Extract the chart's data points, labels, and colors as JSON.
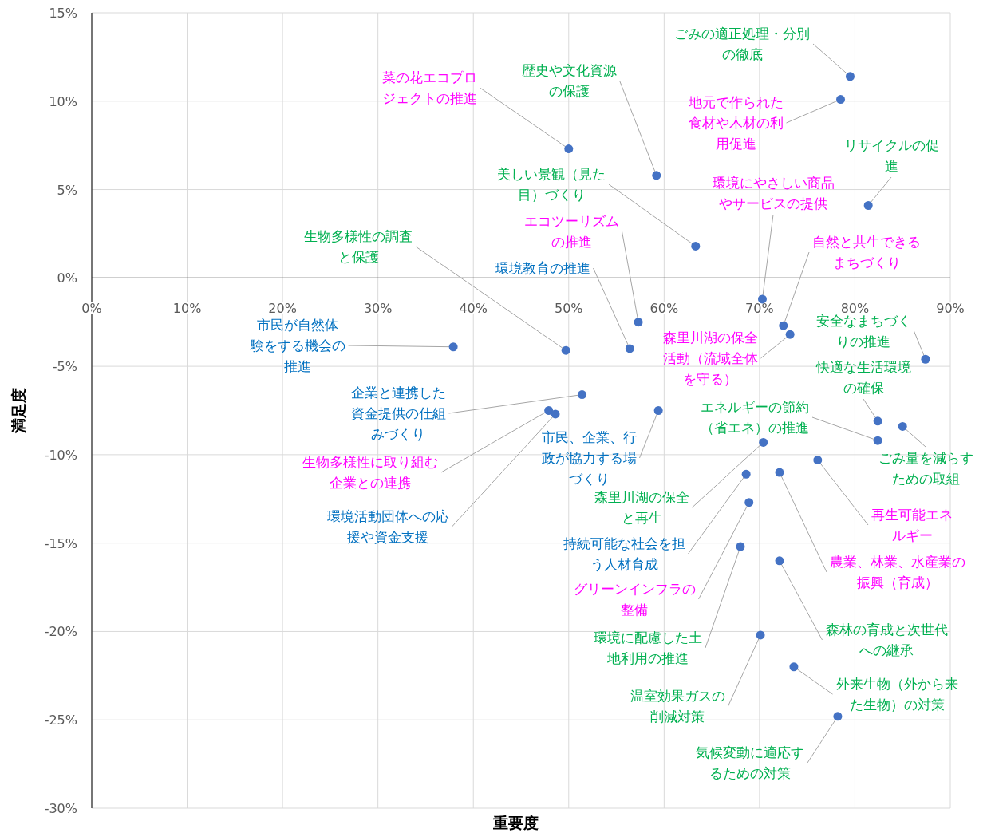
{
  "chart_data": {
    "type": "scatter",
    "xlabel": "重要度",
    "ylabel": "満足度",
    "xlim": [
      0,
      90
    ],
    "ylim": [
      -30,
      15
    ],
    "xticks": [
      {
        "value": 0,
        "label": "0%"
      },
      {
        "value": 10,
        "label": "10%"
      },
      {
        "value": 20,
        "label": "20%"
      },
      {
        "value": 30,
        "label": "30%"
      },
      {
        "value": 40,
        "label": "40%"
      },
      {
        "value": 50,
        "label": "50%"
      },
      {
        "value": 60,
        "label": "60%"
      },
      {
        "value": 70,
        "label": "70%"
      },
      {
        "value": 80,
        "label": "80%"
      },
      {
        "value": 90,
        "label": "90%"
      }
    ],
    "yticks": [
      {
        "value": 15,
        "label": "15%"
      },
      {
        "value": 10,
        "label": "10%"
      },
      {
        "value": 5,
        "label": "5%"
      },
      {
        "value": 0,
        "label": "0%"
      },
      {
        "value": -5,
        "label": "-5%"
      },
      {
        "value": -10,
        "label": "-10%"
      },
      {
        "value": -15,
        "label": "-15%"
      },
      {
        "value": -20,
        "label": "-20%"
      },
      {
        "value": -25,
        "label": "-25%"
      },
      {
        "value": -30,
        "label": "-30%"
      }
    ],
    "grid": true,
    "marker": "circle",
    "series": [
      {
        "color": "#4472c4",
        "x": [
          79.5,
          78.5,
          50.0,
          59.2,
          81.4,
          63.3,
          70.3,
          72.5,
          57.3,
          56.4,
          49.7,
          37.9,
          73.2,
          87.4,
          82.4,
          85.0,
          82.4,
          51.4,
          59.4,
          47.9,
          48.6,
          70.4,
          76.1,
          68.6,
          72.1,
          68.9,
          68.0,
          72.1,
          70.1,
          73.6,
          78.2
        ],
        "values": [
          11.4,
          10.1,
          7.3,
          5.8,
          4.1,
          1.8,
          -1.2,
          -2.7,
          -2.5,
          -4.0,
          -4.1,
          -3.9,
          -3.2,
          -4.6,
          -8.1,
          -8.4,
          -9.2,
          -6.6,
          -7.5,
          -7.5,
          -7.7,
          -9.3,
          -10.3,
          -11.1,
          -11.0,
          -12.7,
          -15.2,
          -16.0,
          -20.2,
          -22.0,
          -24.8
        ]
      }
    ],
    "annotations": [
      {
        "text": "ごみの適正処理・分別の徹底",
        "x": 79.5,
        "y": 11.4
      },
      {
        "text": "地元で作られた食材や木材の利用促進",
        "x": 78.5,
        "y": 10.1
      },
      {
        "text": "菜の花エコプロジェクトの推進",
        "x": 50.0,
        "y": 7.3
      },
      {
        "text": "歴史や文化資源の保護",
        "x": 59.2,
        "y": 5.8
      },
      {
        "text": "リサイクルの促進",
        "x": 81.4,
        "y": 4.1
      },
      {
        "text": "美しい景観（見た目）づくり",
        "x": 63.3,
        "y": 1.8
      },
      {
        "text": "環境にやさしい商品やサービスの提供",
        "x": 70.3,
        "y": -1.2
      },
      {
        "text": "自然と共生できるまちづくり",
        "x": 72.5,
        "y": -2.7
      },
      {
        "text": "エコツーリズムの推進",
        "x": 57.3,
        "y": -2.5
      },
      {
        "text": "環境教育の推進",
        "x": 56.4,
        "y": -4.0
      },
      {
        "text": "生物多様性の調査と保護",
        "x": 49.7,
        "y": -4.1
      },
      {
        "text": "市民が自然体験をする機会の推進",
        "x": 37.9,
        "y": -3.9
      },
      {
        "text": "森里川湖の保全活動（流域全体を守る）",
        "x": 73.2,
        "y": -3.2
      },
      {
        "text": "安全なまちづくりの推進",
        "x": 87.4,
        "y": -4.6
      },
      {
        "text": "快適な生活環境の確保",
        "x": 82.4,
        "y": -8.1
      },
      {
        "text": "ごみ量を減らすための取組",
        "x": 85.0,
        "y": -8.4
      },
      {
        "text": "エネルギーの節約（省エネ）の推進",
        "x": 82.4,
        "y": -9.2
      },
      {
        "text": "企業と連携した資金提供の仕組みづくり",
        "x": 51.4,
        "y": -6.6
      },
      {
        "text": "市民、企業、行政が協力する場づくり",
        "x": 59.4,
        "y": -7.5
      },
      {
        "text": "生物多様性に取り組む企業との連携",
        "x": 47.9,
        "y": -7.5
      },
      {
        "text": "環境活動団体への応援や資金支援",
        "x": 48.6,
        "y": -7.7
      },
      {
        "text": "森里川湖の保全と再生",
        "x": 70.4,
        "y": -9.3
      },
      {
        "text": "再生可能エネルギー",
        "x": 76.1,
        "y": -10.3
      },
      {
        "text": "持続可能な社会を担う人材育成",
        "x": 68.6,
        "y": -11.1
      },
      {
        "text": "農業、林業、水産業の振興（育成）",
        "x": 72.1,
        "y": -11.0
      },
      {
        "text": "グリーンインフラの整備",
        "x": 68.9,
        "y": -12.7
      },
      {
        "text": "環境に配慮した土地利用の推進",
        "x": 68.0,
        "y": -15.2
      },
      {
        "text": "森林の育成と次世代への継承",
        "x": 72.1,
        "y": -16.0
      },
      {
        "text": "温室効果ガスの削減対策",
        "x": 70.1,
        "y": -20.2
      },
      {
        "text": "外来生物（外から来た生物）の対策",
        "x": 73.6,
        "y": -22.0
      },
      {
        "text": "気候変動に適応するための対策",
        "x": 78.2,
        "y": -24.8
      }
    ]
  }
}
